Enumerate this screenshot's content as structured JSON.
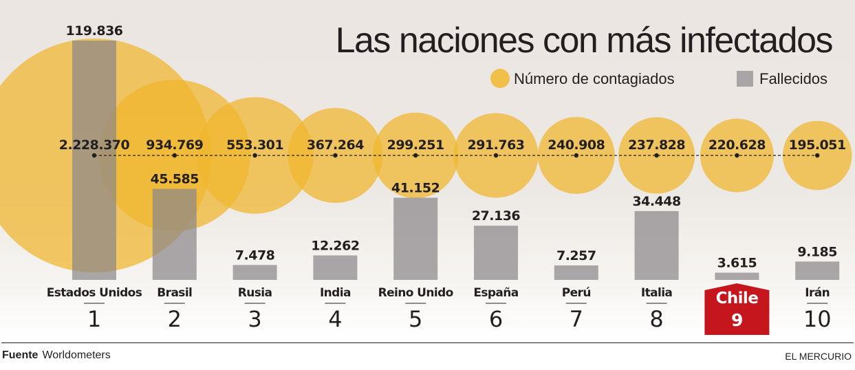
{
  "chart_data": {
    "type": "bubble-bar",
    "title": "Las naciones con más infectados",
    "legend": [
      {
        "label": "Número de contagiados",
        "shape": "circle",
        "color": "#f0c04a"
      },
      {
        "label": "Fallecidos",
        "shape": "square",
        "color": "#a9a5a6"
      }
    ],
    "legend_position": "top-right",
    "categories": [
      "Estados Unidos",
      "Brasil",
      "Rusia",
      "India",
      "Reino Unido",
      "España",
      "Perú",
      "Italia",
      "Chile",
      "Irán"
    ],
    "ranks": [
      "1",
      "2",
      "3",
      "4",
      "5",
      "6",
      "7",
      "8",
      "9",
      "10"
    ],
    "series": [
      {
        "name": "Número de contagiados",
        "values": [
          2228370,
          934769,
          553301,
          367264,
          299251,
          291763,
          240908,
          237828,
          220628,
          195051
        ],
        "labels": [
          "2.228.370",
          "934.769",
          "553.301",
          "367.264",
          "299.251",
          "291.763",
          "240.908",
          "237.828",
          "220.628",
          "195.051"
        ]
      },
      {
        "name": "Fallecidos",
        "values": [
          119836,
          45585,
          7478,
          12262,
          41152,
          27136,
          7257,
          34448,
          3615,
          9185
        ],
        "labels": [
          "119.836",
          "45.585",
          "7.478",
          "12.262",
          "41.152",
          "27.136",
          "7.257",
          "34.448",
          "3.615",
          "9.185"
        ]
      }
    ],
    "highlight": {
      "category": "Chile",
      "color": "#c4161c"
    },
    "colors": {
      "circle": "#f0bc3c",
      "bar": "#a9a5a6",
      "text": "#231f20"
    }
  },
  "footer": {
    "source_label": "Fuente",
    "source_value": "Worldometers",
    "publisher": "EL MERCURIO"
  }
}
